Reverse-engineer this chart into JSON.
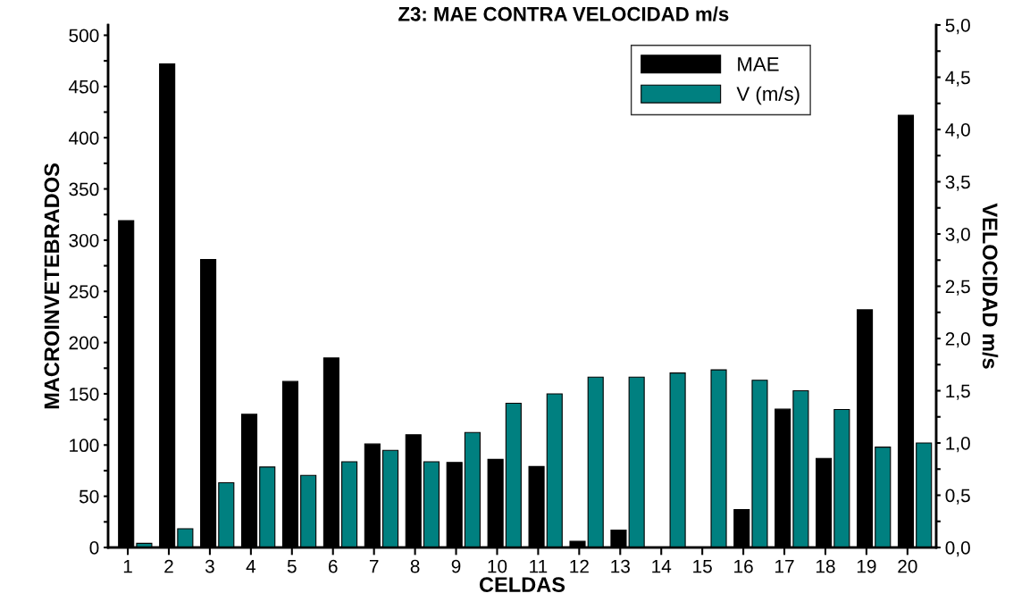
{
  "chart_data": {
    "type": "bar",
    "title": "Z3: MAE CONTRA VELOCIDAD m/s",
    "xlabel": "CELDAS",
    "ylabel": "MACROINVETEBRADOS",
    "y2label": "VELOCIDAD m/s",
    "categories": [
      "1",
      "2",
      "3",
      "4",
      "5",
      "6",
      "7",
      "8",
      "9",
      "10",
      "11",
      "12",
      "13",
      "14",
      "15",
      "16",
      "17",
      "18",
      "19",
      "20"
    ],
    "series": [
      {
        "name": "MAE",
        "color": "#000000",
        "values": [
          319,
          472,
          281,
          130,
          162,
          185,
          101,
          110,
          83,
          86,
          79,
          6,
          17,
          0,
          0,
          37,
          135,
          87,
          232,
          422
        ]
      },
      {
        "name": "V (m/s)",
        "color": "#008080",
        "axis": "y2",
        "values": [
          0.04,
          0.18,
          0.62,
          0.77,
          0.69,
          0.82,
          0.93,
          0.82,
          1.1,
          1.38,
          1.47,
          1.63,
          1.63,
          1.67,
          1.7,
          1.6,
          1.5,
          1.32,
          0.96,
          1.0
        ]
      }
    ],
    "ylim": [
      0,
      510
    ],
    "yticks": [
      0,
      {
        "value": 25,
        "label": null
      },
      50,
      {
        "value": 75,
        "label": null
      },
      100,
      {
        "value": 125,
        "label": null
      },
      150,
      {
        "value": 175,
        "label": null
      },
      200,
      {
        "value": 225,
        "label": null
      },
      250,
      {
        "value": 275,
        "label": null
      },
      300,
      {
        "value": 325,
        "label": null
      },
      350,
      {
        "value": 375,
        "label": null
      },
      400,
      {
        "value": 425,
        "label": null
      },
      450,
      {
        "value": 475,
        "label": null
      },
      500
    ],
    "y2lim": [
      0,
      5.0
    ],
    "y2ticks": [
      {
        "value": 0,
        "label": "0,0"
      },
      {
        "value": 0.25,
        "label": null
      },
      {
        "value": 0.5,
        "label": "0,5"
      },
      {
        "value": 0.75,
        "label": null
      },
      {
        "value": 1.0,
        "label": "1,0"
      },
      {
        "value": 1.25,
        "label": null
      },
      {
        "value": 1.5,
        "label": "1,5"
      },
      {
        "value": 1.75,
        "label": null
      },
      {
        "value": 2.0,
        "label": "2,0"
      },
      {
        "value": 2.25,
        "label": null
      },
      {
        "value": 2.5,
        "label": "2,5"
      },
      {
        "value": 2.75,
        "label": null
      },
      {
        "value": 3.0,
        "label": "3,0"
      },
      {
        "value": 3.25,
        "label": null
      },
      {
        "value": 3.5,
        "label": "3,5"
      },
      {
        "value": 3.75,
        "label": null
      },
      {
        "value": 4.0,
        "label": "4,0"
      },
      {
        "value": 4.25,
        "label": null
      },
      {
        "value": 4.5,
        "label": "4,5"
      },
      {
        "value": 4.75,
        "label": null
      },
      {
        "value": 5.0,
        "label": "5,0"
      }
    ],
    "grid": false,
    "legend": "top right"
  }
}
